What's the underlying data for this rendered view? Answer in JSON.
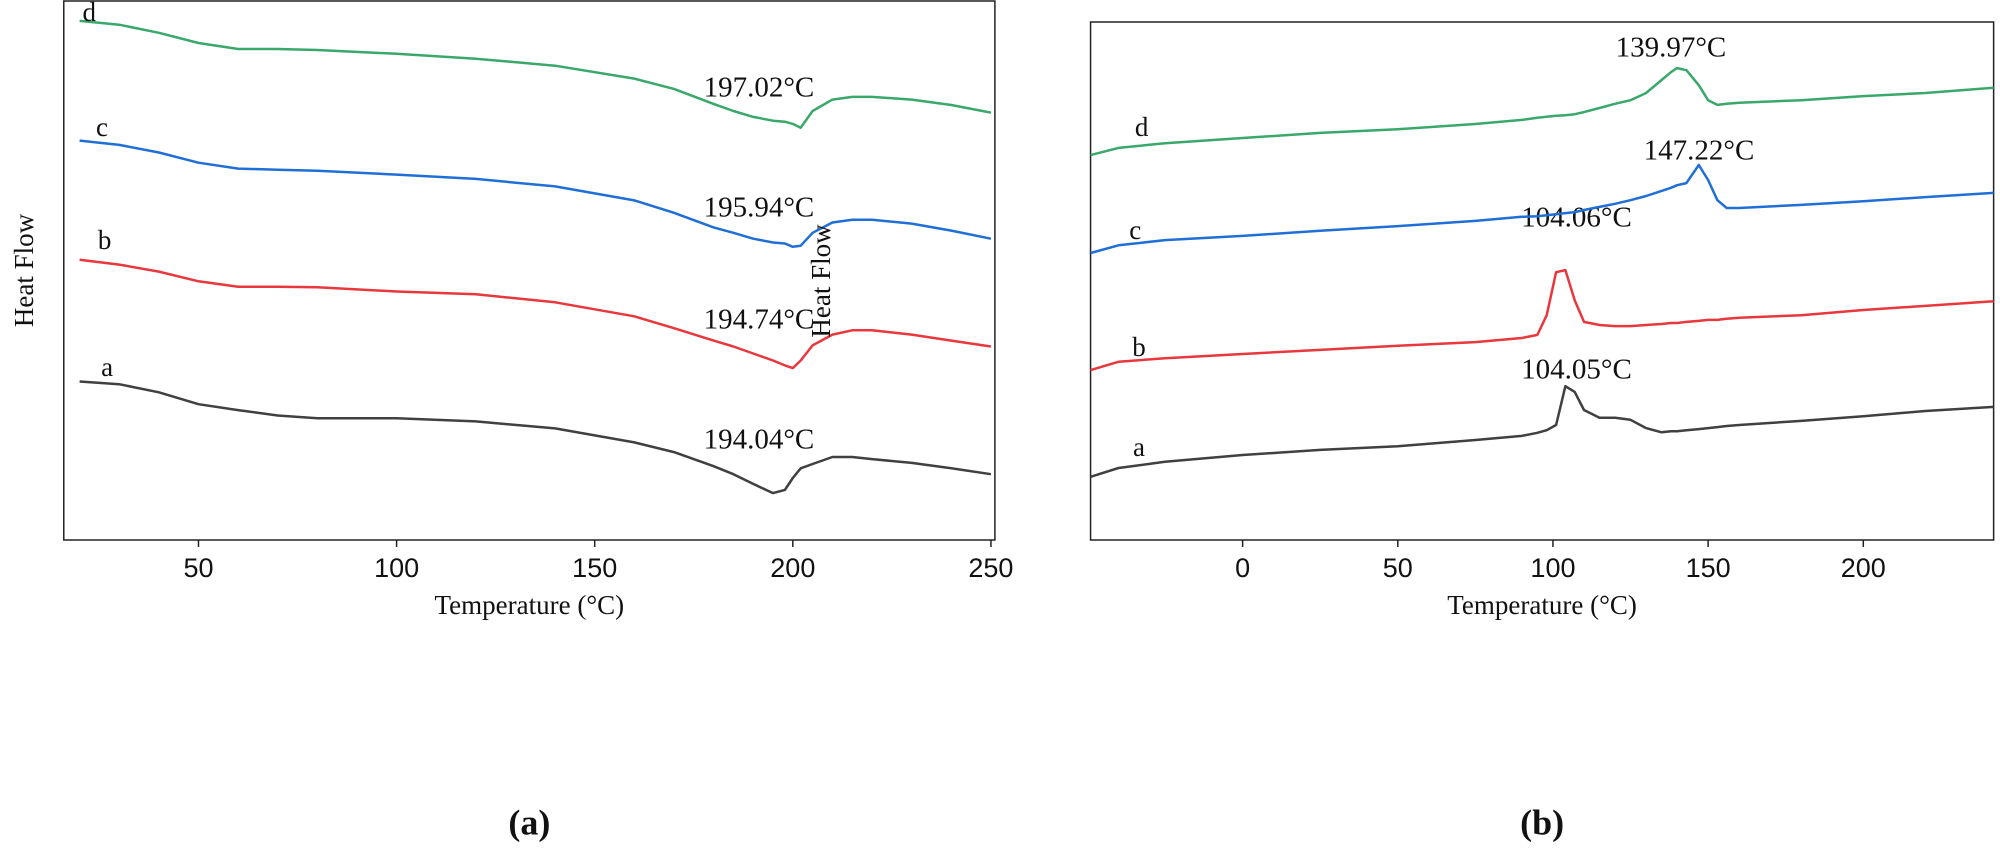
{
  "chart_data": [
    {
      "type": "line",
      "panel_label": "(a)",
      "xlabel": "Temperature (°C)",
      "ylabel": "Heat Flow",
      "xlim": [
        16,
        251
      ],
      "xticks": [
        50,
        100,
        150,
        200,
        250
      ],
      "ylim": [
        0,
        100
      ],
      "x": [
        20,
        30,
        40,
        50,
        60,
        70,
        80,
        100,
        120,
        140,
        160,
        170,
        180,
        185,
        190,
        195,
        198,
        200,
        202,
        205,
        210,
        215,
        220,
        230,
        240,
        250
      ],
      "series": [
        {
          "name": "a",
          "color": "#404040",
          "values": [
            29.4,
            28.9,
            27.4,
            25.2,
            24.1,
            23.1,
            22.6,
            22.6,
            22.0,
            20.7,
            18.1,
            16.3,
            13.7,
            12.2,
            10.4,
            8.7,
            9.3,
            11.5,
            13.3,
            14.1,
            15.4,
            15.4,
            15.0,
            14.3,
            13.3,
            12.2
          ]
        },
        {
          "name": "b",
          "color": "#e8383d",
          "values": [
            52.0,
            51.1,
            49.8,
            48.0,
            47.0,
            47.0,
            46.9,
            46.1,
            45.6,
            44.1,
            41.5,
            39.3,
            37.0,
            35.9,
            34.6,
            33.3,
            32.4,
            31.9,
            33.3,
            36.1,
            38.1,
            38.9,
            38.9,
            38.1,
            37.0,
            35.9
          ]
        },
        {
          "name": "c",
          "color": "#1f6fd6",
          "values": [
            74.1,
            73.3,
            71.9,
            70.0,
            68.9,
            68.7,
            68.5,
            67.8,
            67.0,
            65.6,
            63.0,
            60.7,
            58.0,
            57.0,
            55.9,
            55.2,
            55.0,
            54.4,
            54.6,
            57.0,
            58.9,
            59.4,
            59.4,
            58.7,
            57.4,
            55.9
          ]
        },
        {
          "name": "d",
          "color": "#3aa86b",
          "values": [
            96.3,
            95.6,
            94.1,
            92.2,
            91.1,
            91.1,
            90.9,
            90.2,
            89.3,
            88.0,
            85.6,
            83.7,
            80.9,
            79.6,
            78.5,
            77.8,
            77.6,
            77.2,
            76.5,
            79.6,
            81.7,
            82.2,
            82.2,
            81.7,
            80.7,
            79.3
          ]
        }
      ],
      "annotations": [
        "194.04°C",
        "194.74°C",
        "195.94°C",
        "197.02°C"
      ]
    },
    {
      "type": "line",
      "panel_label": "(b)",
      "xlabel": "Temperature (°C)",
      "ylabel": "Heat Flow",
      "xlim": [
        -49,
        242
      ],
      "xticks": [
        0,
        50,
        100,
        150,
        200
      ],
      "ylim": [
        0,
        100
      ],
      "x": [
        -49,
        -40,
        -25,
        0,
        25,
        50,
        75,
        90,
        95,
        98,
        101,
        104,
        107,
        110,
        115,
        120,
        125,
        130,
        135,
        138,
        140,
        143,
        147,
        150,
        153,
        156,
        160,
        180,
        200,
        220,
        242
      ],
      "series": [
        {
          "name": "a",
          "color": "#404040",
          "values": [
            12.2,
            13.9,
            15.1,
            16.4,
            17.4,
            18.1,
            19.3,
            20.1,
            20.7,
            21.2,
            22.2,
            29.7,
            28.6,
            25.1,
            23.6,
            23.6,
            23.2,
            21.6,
            20.8,
            21.0,
            21.0,
            21.2,
            21.4,
            21.6,
            21.8,
            22.0,
            22.2,
            23.0,
            23.9,
            24.9,
            25.7
          ]
        },
        {
          "name": "b",
          "color": "#e8383d",
          "values": [
            32.8,
            34.4,
            35.1,
            35.9,
            36.7,
            37.5,
            38.2,
            39.0,
            39.6,
            43.4,
            51.7,
            52.1,
            46.3,
            42.1,
            41.5,
            41.3,
            41.3,
            41.5,
            41.7,
            41.9,
            41.9,
            42.1,
            42.3,
            42.5,
            42.5,
            42.7,
            42.9,
            43.4,
            44.4,
            45.2,
            46.1
          ]
        },
        {
          "name": "c",
          "color": "#1f6fd6",
          "values": [
            55.4,
            56.9,
            57.9,
            58.7,
            59.7,
            60.6,
            61.6,
            62.4,
            62.5,
            62.7,
            62.9,
            63.1,
            63.3,
            63.7,
            64.3,
            64.9,
            65.6,
            66.4,
            67.4,
            68.0,
            68.5,
            68.9,
            72.4,
            69.5,
            65.6,
            64.1,
            64.1,
            64.7,
            65.4,
            66.2,
            67.0
          ]
        },
        {
          "name": "d",
          "color": "#3aa86b",
          "values": [
            74.3,
            75.7,
            76.6,
            77.6,
            78.6,
            79.3,
            80.3,
            81.1,
            81.5,
            81.7,
            81.9,
            82.0,
            82.2,
            82.6,
            83.4,
            84.2,
            84.9,
            86.3,
            88.8,
            90.3,
            91.1,
            90.7,
            87.8,
            84.9,
            84.0,
            84.2,
            84.4,
            84.9,
            85.7,
            86.3,
            87.3
          ]
        }
      ],
      "annotations": [
        "104.05°C",
        "104.06°C",
        "147.22°C",
        "139.97°C"
      ]
    }
  ]
}
